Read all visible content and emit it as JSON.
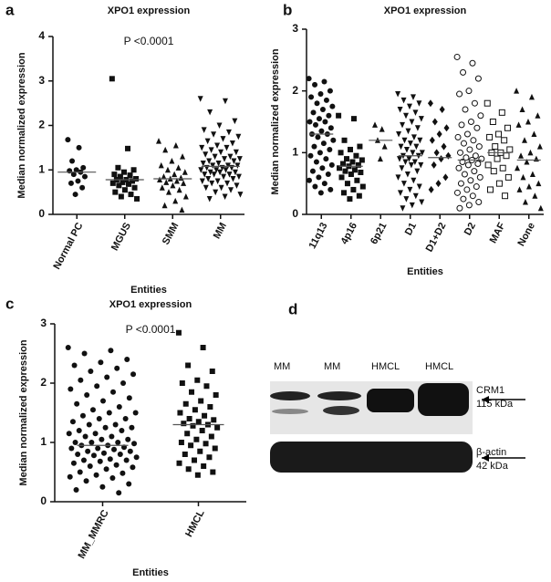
{
  "chart_data": [
    {
      "type": "dot",
      "panel": "a",
      "title": "XPO1 expression",
      "annotation": "P <0.0001",
      "x_label": "Entities",
      "y_label": "Median normalized expression",
      "ylim": [
        0,
        4
      ],
      "yticks": [
        0,
        1,
        2,
        3,
        4
      ],
      "groups": [
        {
          "name": "Normal PC",
          "marker": "circle",
          "median": 0.95,
          "values": [
            1.68,
            1.5,
            1.2,
            1.05,
            1.0,
            0.98,
            0.95,
            0.9,
            0.85,
            0.75,
            0.7,
            0.6,
            0.45
          ]
        },
        {
          "name": "MGUS",
          "marker": "square",
          "median": 0.78,
          "values": [
            3.05,
            1.48,
            1.05,
            1.0,
            0.95,
            0.9,
            0.88,
            0.85,
            0.8,
            0.78,
            0.78,
            0.75,
            0.72,
            0.7,
            0.68,
            0.65,
            0.6,
            0.55,
            0.5,
            0.45,
            0.4,
            0.35
          ]
        },
        {
          "name": "SMM",
          "marker": "triangle",
          "median": 0.8,
          "values": [
            1.65,
            1.55,
            1.45,
            1.3,
            1.2,
            1.1,
            1.05,
            1.0,
            0.95,
            0.9,
            0.85,
            0.82,
            0.8,
            0.78,
            0.75,
            0.72,
            0.7,
            0.65,
            0.6,
            0.55,
            0.5,
            0.4,
            0.3,
            0.2,
            0.1
          ]
        },
        {
          "name": "MM",
          "marker": "triangle-down",
          "median": 1.08,
          "values": [
            2.6,
            2.55,
            2.3,
            2.1,
            2.0,
            1.9,
            1.85,
            1.8,
            1.75,
            1.7,
            1.65,
            1.6,
            1.55,
            1.5,
            1.5,
            1.45,
            1.4,
            1.4,
            1.35,
            1.3,
            1.3,
            1.25,
            1.25,
            1.2,
            1.2,
            1.15,
            1.15,
            1.1,
            1.1,
            1.1,
            1.05,
            1.05,
            1.05,
            1.0,
            1.0,
            1.0,
            0.95,
            0.95,
            0.95,
            0.9,
            0.9,
            0.9,
            0.85,
            0.85,
            0.8,
            0.8,
            0.75,
            0.75,
            0.7,
            0.7,
            0.65,
            0.6,
            0.6,
            0.55,
            0.5,
            0.45,
            0.4,
            0.35
          ]
        }
      ]
    },
    {
      "type": "dot",
      "panel": "b",
      "title": "XPO1 expression",
      "x_label": "Entities",
      "y_label": "Median normalized expression",
      "ylim": [
        0,
        3
      ],
      "yticks": [
        0,
        1,
        2,
        3
      ],
      "groups": [
        {
          "name": "11q13",
          "marker": "circle",
          "median": 1.3,
          "values": [
            2.2,
            2.15,
            2.1,
            2.0,
            1.95,
            1.9,
            1.85,
            1.8,
            1.75,
            1.7,
            1.65,
            1.6,
            1.55,
            1.5,
            1.5,
            1.45,
            1.4,
            1.35,
            1.3,
            1.3,
            1.25,
            1.2,
            1.15,
            1.1,
            1.05,
            1.0,
            0.95,
            0.9,
            0.85,
            0.8,
            0.75,
            0.7,
            0.65,
            0.6,
            0.55,
            0.5,
            0.45,
            0.4,
            0.35
          ]
        },
        {
          "name": "4p16",
          "marker": "square",
          "median": 0.78,
          "values": [
            1.6,
            1.55,
            1.2,
            1.1,
            1.05,
            1.0,
            0.95,
            0.9,
            0.88,
            0.85,
            0.82,
            0.8,
            0.78,
            0.75,
            0.72,
            0.7,
            0.68,
            0.65,
            0.6,
            0.55,
            0.5,
            0.45,
            0.4,
            0.35,
            0.3,
            0.25
          ]
        },
        {
          "name": "6p21",
          "marker": "triangle",
          "median": 1.2,
          "values": [
            1.45,
            1.38,
            1.2,
            1.1,
            0.9
          ]
        },
        {
          "name": "D1",
          "marker": "triangle-down",
          "median": 0.95,
          "values": [
            1.95,
            1.9,
            1.85,
            1.8,
            1.75,
            1.7,
            1.65,
            1.6,
            1.55,
            1.5,
            1.45,
            1.4,
            1.35,
            1.3,
            1.25,
            1.2,
            1.2,
            1.15,
            1.1,
            1.1,
            1.05,
            1.0,
            1.0,
            0.95,
            0.95,
            0.9,
            0.9,
            0.85,
            0.85,
            0.8,
            0.8,
            0.75,
            0.7,
            0.65,
            0.6,
            0.55,
            0.5,
            0.45,
            0.4,
            0.35,
            0.3,
            0.25,
            0.2,
            0.15,
            0.1
          ]
        },
        {
          "name": "D1+D2",
          "marker": "diamond",
          "median": 0.92,
          "values": [
            1.8,
            1.7,
            1.5,
            1.4,
            1.3,
            1.2,
            1.1,
            1.0,
            0.95,
            0.9,
            0.8,
            0.6,
            0.5,
            0.4
          ]
        },
        {
          "name": "D2",
          "marker": "circle-open",
          "median": 0.88,
          "values": [
            2.55,
            2.45,
            2.3,
            2.2,
            2.0,
            1.95,
            1.8,
            1.7,
            1.6,
            1.5,
            1.45,
            1.4,
            1.3,
            1.25,
            1.2,
            1.15,
            1.1,
            1.05,
            1.0,
            0.95,
            0.92,
            0.9,
            0.88,
            0.85,
            0.82,
            0.8,
            0.75,
            0.7,
            0.65,
            0.6,
            0.55,
            0.5,
            0.45,
            0.4,
            0.35,
            0.3,
            0.25,
            0.2,
            0.15,
            0.1
          ]
        },
        {
          "name": "MAF",
          "marker": "square-open",
          "median": 1.0,
          "values": [
            1.8,
            1.65,
            1.5,
            1.4,
            1.3,
            1.25,
            1.2,
            1.1,
            1.05,
            1.0,
            1.0,
            0.95,
            0.9,
            0.8,
            0.75,
            0.7,
            0.6,
            0.5,
            0.4,
            0.3
          ]
        },
        {
          "name": "None",
          "marker": "triangle",
          "median": 0.88,
          "values": [
            2.0,
            1.9,
            1.7,
            1.6,
            1.5,
            1.45,
            1.3,
            1.2,
            1.1,
            1.0,
            0.95,
            0.9,
            0.85,
            0.75,
            0.65,
            0.6,
            0.5,
            0.45,
            0.4,
            0.3,
            0.2,
            0.1
          ]
        }
      ]
    },
    {
      "type": "dot",
      "panel": "c",
      "title": "XPO1 expression",
      "annotation": "P <0.0001",
      "x_label": "Entities",
      "y_label": "Median normalized expression",
      "ylim": [
        0,
        3
      ],
      "yticks": [
        0,
        1,
        2,
        3
      ],
      "groups": [
        {
          "name": "MM_MMRC",
          "marker": "circle",
          "median": 0.95,
          "values": [
            2.6,
            2.55,
            2.5,
            2.4,
            2.35,
            2.3,
            2.25,
            2.2,
            2.15,
            2.1,
            2.05,
            2.0,
            1.95,
            1.9,
            1.85,
            1.8,
            1.75,
            1.7,
            1.65,
            1.6,
            1.55,
            1.5,
            1.5,
            1.45,
            1.4,
            1.4,
            1.35,
            1.3,
            1.3,
            1.25,
            1.25,
            1.2,
            1.2,
            1.15,
            1.15,
            1.1,
            1.1,
            1.05,
            1.05,
            1.0,
            1.0,
            1.0,
            0.98,
            0.95,
            0.95,
            0.92,
            0.9,
            0.9,
            0.88,
            0.85,
            0.85,
            0.82,
            0.8,
            0.8,
            0.78,
            0.75,
            0.72,
            0.7,
            0.7,
            0.68,
            0.65,
            0.62,
            0.6,
            0.58,
            0.55,
            0.5,
            0.48,
            0.45,
            0.42,
            0.4,
            0.35,
            0.3,
            0.25,
            0.2,
            0.15
          ]
        },
        {
          "name": "HMCL",
          "marker": "square",
          "median": 1.3,
          "values": [
            2.85,
            2.6,
            2.3,
            2.2,
            2.05,
            2.0,
            1.95,
            1.85,
            1.8,
            1.7,
            1.65,
            1.6,
            1.55,
            1.5,
            1.45,
            1.4,
            1.38,
            1.35,
            1.32,
            1.3,
            1.28,
            1.25,
            1.2,
            1.15,
            1.1,
            1.05,
            1.0,
            0.98,
            0.95,
            0.9,
            0.85,
            0.8,
            0.75,
            0.7,
            0.65,
            0.6,
            0.55,
            0.5,
            0.45
          ]
        }
      ]
    }
  ],
  "blot": {
    "panel": "d",
    "lanes": [
      "MM",
      "MM",
      "HMCL",
      "HMCL"
    ],
    "bands": [
      {
        "label": "CRM1",
        "size": "115 kDa"
      },
      {
        "label": "β-actin",
        "size": "42 kDa"
      }
    ]
  }
}
